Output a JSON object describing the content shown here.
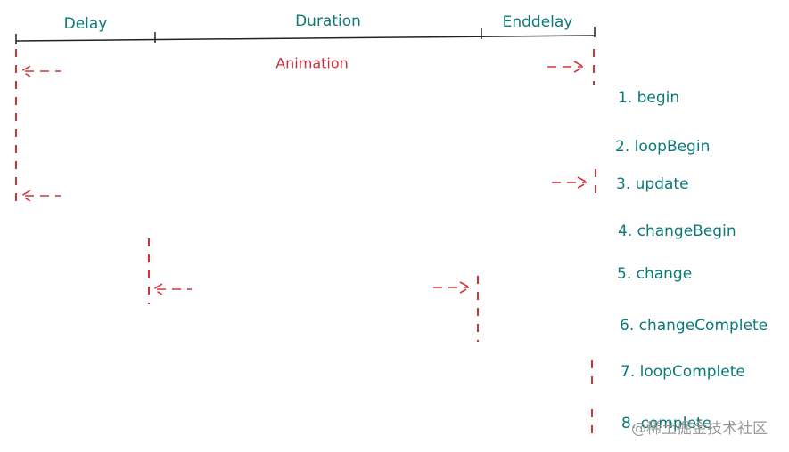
{
  "timeline": {
    "segments": [
      "Delay",
      "Duration",
      "Enddelay"
    ],
    "span_label": "Animation"
  },
  "events": [
    "1. begin",
    "2. loopBegin",
    "3. update",
    "4. changeBegin",
    "5. change",
    "6. changeComplete",
    "7. loopComplete",
    "8. complete"
  ],
  "watermark": "@稀土掘金技术社区"
}
